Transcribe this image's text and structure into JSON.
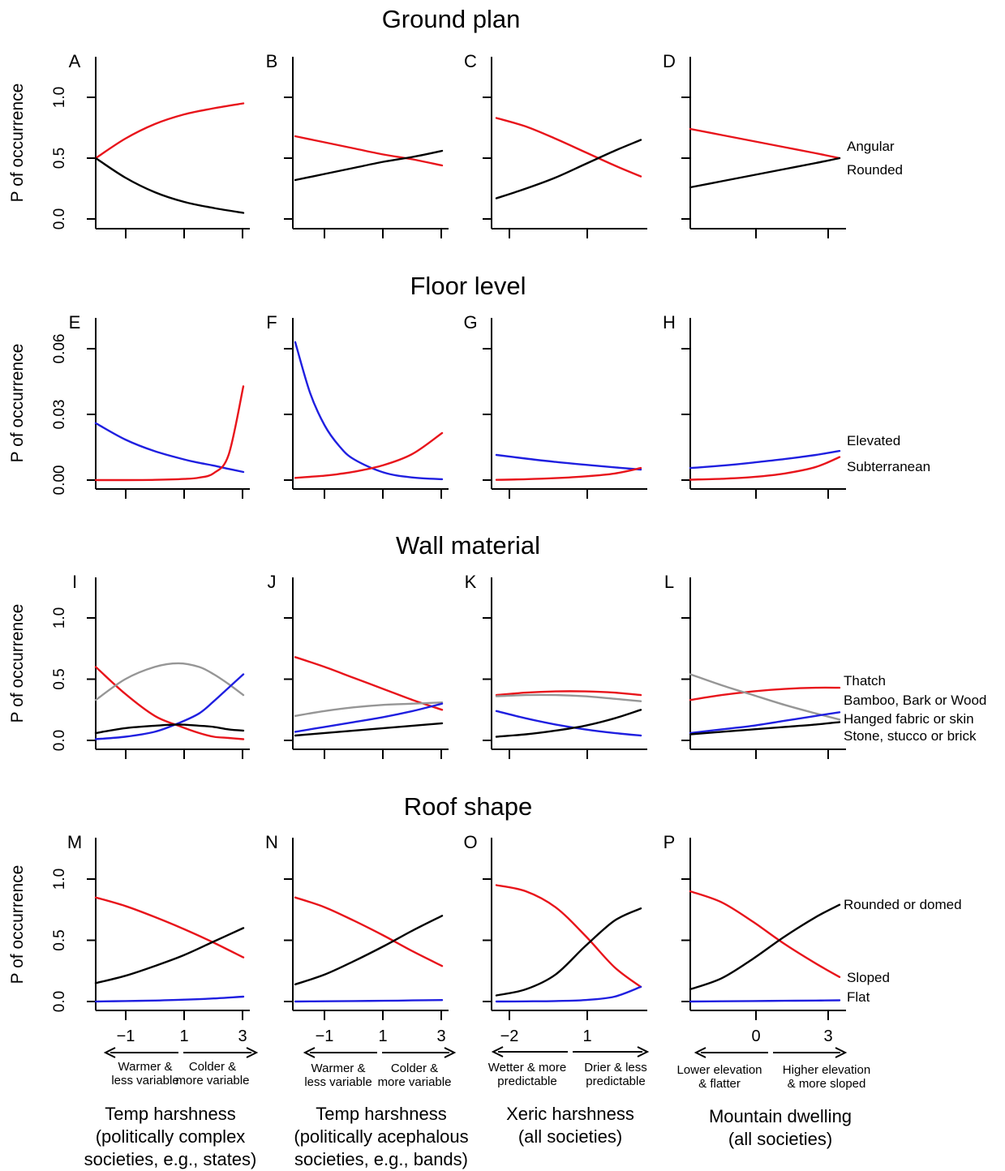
{
  "row_titles": [
    "Ground plan",
    "Floor level",
    "Wall material",
    "Roof shape"
  ],
  "ylabel": "P of occurrence",
  "colors": {
    "red": "#e8141b",
    "black": "#000000",
    "blue": "#1f1fe0",
    "gray": "#969696"
  },
  "x_ticks": {
    "c0": {
      "values": [
        -1,
        1,
        3
      ],
      "labels": [
        "−1",
        "1",
        "3"
      ]
    },
    "c1": {
      "values": [
        -1,
        1,
        3
      ],
      "labels": [
        "−1",
        "1",
        "3"
      ]
    },
    "c2": {
      "values": [
        -2,
        1
      ],
      "labels": [
        "−2",
        "1"
      ]
    },
    "c3": {
      "values": [
        0,
        3
      ],
      "labels": [
        "0",
        "3"
      ]
    }
  },
  "arrow_labels": [
    {
      "left": [
        "Warmer &",
        "less variable"
      ],
      "right": [
        "Colder &",
        "more variable"
      ]
    },
    {
      "left": [
        "Warmer &",
        "less variable"
      ],
      "right": [
        "Colder &",
        "more variable"
      ]
    },
    {
      "left": [
        "Wetter & more",
        "predictable"
      ],
      "right": [
        "Drier & less",
        "predictable"
      ]
    },
    {
      "left": [
        "Lower elevation",
        "& flatter"
      ],
      "right": [
        "Higher elevation",
        "& more sloped"
      ]
    }
  ],
  "x_titles": [
    [
      "Temp harshness",
      "(politically complex",
      "societies, e.g., states)"
    ],
    [
      "Temp harshness",
      "(politically acephalous",
      "societies, e.g., bands)"
    ],
    [
      "Xeric harshness",
      "(all societies)"
    ],
    [
      "Mountain dwelling",
      "(all societies)"
    ]
  ],
  "legends": [
    [
      {
        "text": "Angular",
        "color": "red"
      },
      {
        "text": "Rounded",
        "color": "black"
      }
    ],
    [
      {
        "text": "Elevated",
        "color": "blue"
      },
      {
        "text": "Subterranean",
        "color": "red"
      }
    ],
    [
      {
        "text": "Thatch",
        "color": "red"
      },
      {
        "text": "Bamboo, Bark or Wood",
        "color": "blue"
      },
      {
        "text": "Hanged fabric or skin",
        "color": "gray"
      },
      {
        "text": "Stone, stucco or brick",
        "color": "black"
      }
    ],
    [
      {
        "text": "Rounded or domed",
        "color": "black"
      },
      {
        "text": "Sloped",
        "color": "red"
      },
      {
        "text": "Flat",
        "color": "blue"
      }
    ]
  ],
  "chart_data": [
    {
      "panel": "A",
      "type": "line",
      "row": 0,
      "col": 0,
      "ylim": [
        0,
        1.0
      ],
      "yticks": [
        0,
        0.5,
        1.0
      ],
      "ytick_labels": [
        "0.0",
        "0.5",
        "1.0"
      ],
      "x": [
        -2,
        -1,
        0,
        1,
        2,
        3
      ],
      "series": [
        {
          "color": "red",
          "values": [
            0.5,
            0.66,
            0.78,
            0.86,
            0.91,
            0.95
          ]
        },
        {
          "color": "black",
          "values": [
            0.5,
            0.34,
            0.22,
            0.14,
            0.09,
            0.05
          ]
        }
      ]
    },
    {
      "panel": "B",
      "type": "line",
      "row": 0,
      "col": 1,
      "ylim": [
        0,
        1.0
      ],
      "yticks": [
        0,
        0.5,
        1.0
      ],
      "x": [
        -2,
        -1,
        0,
        1,
        2,
        3
      ],
      "series": [
        {
          "color": "red",
          "values": [
            0.68,
            0.63,
            0.58,
            0.53,
            0.49,
            0.44
          ]
        },
        {
          "color": "black",
          "values": [
            0.32,
            0.37,
            0.42,
            0.47,
            0.51,
            0.56
          ]
        }
      ]
    },
    {
      "panel": "C",
      "type": "line",
      "row": 0,
      "col": 2,
      "ylim": [
        0,
        1.0
      ],
      "yticks": [
        0,
        0.5,
        1.0
      ],
      "x": [
        -2.2,
        -1.3,
        -0.4,
        0.5,
        1.4,
        2.2
      ],
      "series": [
        {
          "color": "red",
          "values": [
            0.83,
            0.76,
            0.66,
            0.55,
            0.44,
            0.35
          ]
        },
        {
          "color": "black",
          "values": [
            0.17,
            0.25,
            0.34,
            0.45,
            0.56,
            0.65
          ]
        }
      ]
    },
    {
      "panel": "D",
      "type": "line",
      "row": 0,
      "col": 3,
      "ylim": [
        0,
        1.0
      ],
      "yticks": [
        0,
        0.5,
        1.0
      ],
      "x": [
        -2.4,
        -1.2,
        0,
        1.2,
        2.4,
        3.3
      ],
      "series": [
        {
          "color": "red",
          "values": [
            0.74,
            0.69,
            0.64,
            0.59,
            0.54,
            0.5
          ]
        },
        {
          "color": "black",
          "values": [
            0.26,
            0.31,
            0.36,
            0.41,
            0.46,
            0.5
          ]
        }
      ]
    },
    {
      "panel": "E",
      "type": "line",
      "row": 1,
      "col": 0,
      "ylim": [
        0,
        0.06
      ],
      "yticks": [
        0,
        0.03,
        0.06
      ],
      "ytick_labels": [
        "0.00",
        "0.03",
        "0.06"
      ],
      "x": [
        -2,
        -1,
        0,
        1,
        1.5,
        2,
        2.5,
        3
      ],
      "series": [
        {
          "color": "blue",
          "values": [
            0.026,
            0.0185,
            0.0132,
            0.0094,
            0.0079,
            0.0066,
            0.0051,
            0.0037
          ]
        },
        {
          "color": "red",
          "values": [
            0.0,
            0.0,
            0.0001,
            0.0005,
            0.0011,
            0.0032,
            0.0115,
            0.0428
          ]
        }
      ]
    },
    {
      "panel": "F",
      "type": "line",
      "row": 1,
      "col": 1,
      "ylim": [
        0,
        0.06
      ],
      "yticks": [
        0,
        0.03,
        0.06
      ],
      "x": [
        -2,
        -1.5,
        -1,
        -0.5,
        0,
        1,
        2,
        3
      ],
      "series": [
        {
          "color": "blue",
          "values": [
            0.063,
            0.04,
            0.025,
            0.0155,
            0.0095,
            0.0035,
            0.0012,
            0.0004
          ]
        },
        {
          "color": "red",
          "values": [
            0.001,
            0.0015,
            0.002,
            0.0028,
            0.0038,
            0.0068,
            0.012,
            0.0215
          ]
        }
      ]
    },
    {
      "panel": "G",
      "type": "line",
      "row": 1,
      "col": 2,
      "ylim": [
        0,
        0.06
      ],
      "yticks": [
        0,
        0.03,
        0.06
      ],
      "x": [
        -2.2,
        -1.3,
        -0.4,
        0.5,
        1.4,
        2.2
      ],
      "series": [
        {
          "color": "blue",
          "values": [
            0.0115,
            0.0098,
            0.0083,
            0.007,
            0.0058,
            0.0048
          ]
        },
        {
          "color": "red",
          "values": [
            0.0001,
            0.0004,
            0.0009,
            0.0017,
            0.003,
            0.0055
          ]
        }
      ]
    },
    {
      "panel": "H",
      "type": "line",
      "row": 1,
      "col": 3,
      "ylim": [
        0,
        0.06
      ],
      "yticks": [
        0,
        0.03,
        0.06
      ],
      "x": [
        -2.4,
        -1.2,
        0,
        1.2,
        2.4,
        3.3
      ],
      "series": [
        {
          "color": "blue",
          "values": [
            0.0055,
            0.0066,
            0.008,
            0.0096,
            0.0115,
            0.0133
          ]
        },
        {
          "color": "red",
          "values": [
            0.0002,
            0.0006,
            0.0014,
            0.003,
            0.006,
            0.0105
          ]
        }
      ]
    },
    {
      "panel": "I",
      "type": "line",
      "row": 2,
      "col": 0,
      "ylim": [
        0,
        1.0
      ],
      "yticks": [
        0,
        0.5,
        1.0
      ],
      "ytick_labels": [
        "0.0",
        "0.5",
        "1.0"
      ],
      "x": [
        -2,
        -1,
        0,
        0.8,
        1.5,
        2,
        2.5,
        3
      ],
      "series": [
        {
          "color": "red",
          "values": [
            0.6,
            0.38,
            0.2,
            0.12,
            0.06,
            0.03,
            0.02,
            0.01
          ]
        },
        {
          "color": "gray",
          "values": [
            0.33,
            0.5,
            0.6,
            0.63,
            0.6,
            0.54,
            0.46,
            0.37
          ]
        },
        {
          "color": "blue",
          "values": [
            0.01,
            0.03,
            0.07,
            0.14,
            0.22,
            0.32,
            0.43,
            0.54
          ]
        },
        {
          "color": "black",
          "values": [
            0.06,
            0.1,
            0.12,
            0.13,
            0.12,
            0.11,
            0.09,
            0.08
          ]
        }
      ]
    },
    {
      "panel": "J",
      "type": "line",
      "row": 2,
      "col": 1,
      "ylim": [
        0,
        1.0
      ],
      "yticks": [
        0,
        0.5,
        1.0
      ],
      "x": [
        -2,
        -1,
        0,
        1,
        2,
        3
      ],
      "series": [
        {
          "color": "red",
          "values": [
            0.68,
            0.6,
            0.51,
            0.42,
            0.33,
            0.25
          ]
        },
        {
          "color": "gray",
          "values": [
            0.2,
            0.24,
            0.27,
            0.29,
            0.3,
            0.31
          ]
        },
        {
          "color": "blue",
          "values": [
            0.07,
            0.11,
            0.15,
            0.19,
            0.24,
            0.3
          ]
        },
        {
          "color": "black",
          "values": [
            0.04,
            0.06,
            0.08,
            0.1,
            0.12,
            0.14
          ]
        }
      ]
    },
    {
      "panel": "K",
      "type": "line",
      "row": 2,
      "col": 2,
      "ylim": [
        0,
        1.0
      ],
      "yticks": [
        0,
        0.5,
        1.0
      ],
      "x": [
        -2.2,
        -1.3,
        -0.4,
        0.5,
        1.4,
        2.2
      ],
      "series": [
        {
          "color": "red",
          "values": [
            0.37,
            0.39,
            0.4,
            0.4,
            0.39,
            0.37
          ]
        },
        {
          "color": "gray",
          "values": [
            0.36,
            0.37,
            0.37,
            0.36,
            0.34,
            0.32
          ]
        },
        {
          "color": "blue",
          "values": [
            0.24,
            0.18,
            0.13,
            0.09,
            0.06,
            0.04
          ]
        },
        {
          "color": "black",
          "values": [
            0.03,
            0.05,
            0.08,
            0.12,
            0.18,
            0.25
          ]
        }
      ]
    },
    {
      "panel": "L",
      "type": "line",
      "row": 2,
      "col": 3,
      "ylim": [
        0,
        1.0
      ],
      "yticks": [
        0,
        0.5,
        1.0
      ],
      "x": [
        -2.4,
        -1.2,
        0,
        1.2,
        2.4,
        3.3
      ],
      "series": [
        {
          "color": "red",
          "values": [
            0.33,
            0.37,
            0.4,
            0.42,
            0.43,
            0.43
          ]
        },
        {
          "color": "gray",
          "values": [
            0.54,
            0.45,
            0.37,
            0.29,
            0.22,
            0.17
          ]
        },
        {
          "color": "blue",
          "values": [
            0.06,
            0.09,
            0.12,
            0.16,
            0.2,
            0.23
          ]
        },
        {
          "color": "black",
          "values": [
            0.05,
            0.07,
            0.09,
            0.11,
            0.13,
            0.15
          ]
        }
      ]
    },
    {
      "panel": "M",
      "type": "line",
      "row": 3,
      "col": 0,
      "ylim": [
        0,
        1.0
      ],
      "yticks": [
        0,
        0.5,
        1.0
      ],
      "ytick_labels": [
        "0.0",
        "0.5",
        "1.0"
      ],
      "x": [
        -2,
        -1,
        0,
        1,
        2,
        3
      ],
      "series": [
        {
          "color": "red",
          "values": [
            0.85,
            0.78,
            0.69,
            0.59,
            0.48,
            0.36
          ]
        },
        {
          "color": "black",
          "values": [
            0.15,
            0.21,
            0.29,
            0.38,
            0.49,
            0.6
          ]
        },
        {
          "color": "blue",
          "values": [
            0.0,
            0.004,
            0.008,
            0.015,
            0.025,
            0.04
          ]
        }
      ]
    },
    {
      "panel": "N",
      "type": "line",
      "row": 3,
      "col": 1,
      "ylim": [
        0,
        1.0
      ],
      "yticks": [
        0,
        0.5,
        1.0
      ],
      "x": [
        -2,
        -1,
        0,
        1,
        2,
        3
      ],
      "series": [
        {
          "color": "red",
          "values": [
            0.85,
            0.77,
            0.66,
            0.54,
            0.41,
            0.29
          ]
        },
        {
          "color": "black",
          "values": [
            0.14,
            0.22,
            0.33,
            0.45,
            0.58,
            0.7
          ]
        },
        {
          "color": "blue",
          "values": [
            0.0,
            0.002,
            0.004,
            0.006,
            0.009,
            0.012
          ]
        }
      ]
    },
    {
      "panel": "O",
      "type": "line",
      "row": 3,
      "col": 2,
      "ylim": [
        0,
        1.0
      ],
      "yticks": [
        0,
        0.5,
        1.0
      ],
      "x": [
        -2.2,
        -1.3,
        -0.4,
        0.5,
        1.4,
        2.2
      ],
      "series": [
        {
          "color": "red",
          "values": [
            0.95,
            0.9,
            0.77,
            0.54,
            0.28,
            0.12
          ]
        },
        {
          "color": "black",
          "values": [
            0.05,
            0.1,
            0.22,
            0.45,
            0.66,
            0.76
          ]
        },
        {
          "color": "blue",
          "values": [
            0.0,
            0.001,
            0.004,
            0.012,
            0.04,
            0.12
          ]
        }
      ]
    },
    {
      "panel": "P",
      "type": "line",
      "row": 3,
      "col": 3,
      "ylim": [
        0,
        1.0
      ],
      "yticks": [
        0,
        0.5,
        1.0
      ],
      "x": [
        -2.4,
        -1.2,
        0,
        1.2,
        2.4,
        3.3
      ],
      "series": [
        {
          "color": "red",
          "values": [
            0.9,
            0.81,
            0.65,
            0.47,
            0.31,
            0.2
          ]
        },
        {
          "color": "black",
          "values": [
            0.1,
            0.19,
            0.35,
            0.53,
            0.69,
            0.79
          ]
        },
        {
          "color": "blue",
          "values": [
            0.0,
            0.002,
            0.004,
            0.006,
            0.008,
            0.01
          ]
        }
      ]
    }
  ]
}
